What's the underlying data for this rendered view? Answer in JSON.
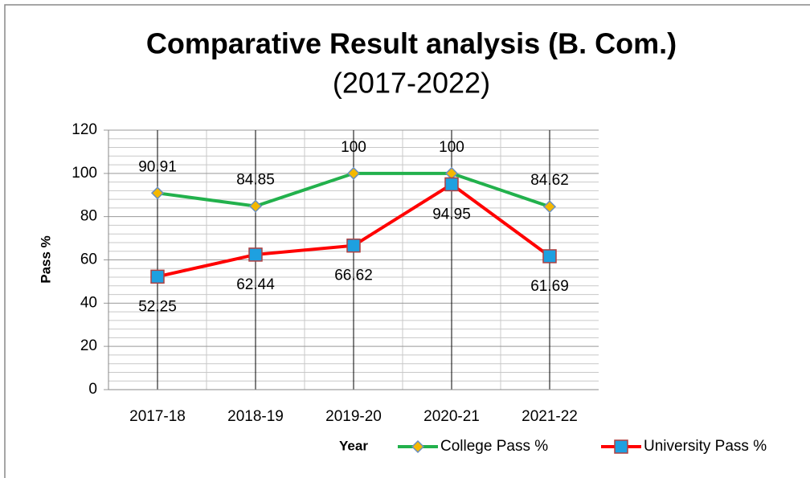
{
  "chart_data": {
    "type": "line",
    "title": "Comparative Result  analysis (B. Com.)",
    "subtitle": "(2017-2022)",
    "x_label": "Year",
    "y_label": "Pass %",
    "categories": [
      "2017-18",
      "2018-19",
      "2019-20",
      "2020-21",
      "2021-22"
    ],
    "series": [
      {
        "name": "College Pass %",
        "color": "#22b14c",
        "marker_color": "#f5b800",
        "values": [
          90.91,
          84.85,
          100,
          100,
          84.62
        ]
      },
      {
        "name": "University Pass %",
        "color": "#ff0000",
        "marker_color": "#1ea0e0",
        "values": [
          52.25,
          62.44,
          66.62,
          94.95,
          61.69
        ]
      }
    ],
    "ylim": [
      0,
      120
    ],
    "yticks": [
      0,
      20,
      40,
      60,
      80,
      100,
      120
    ],
    "grid": true,
    "legend": "bottom"
  }
}
